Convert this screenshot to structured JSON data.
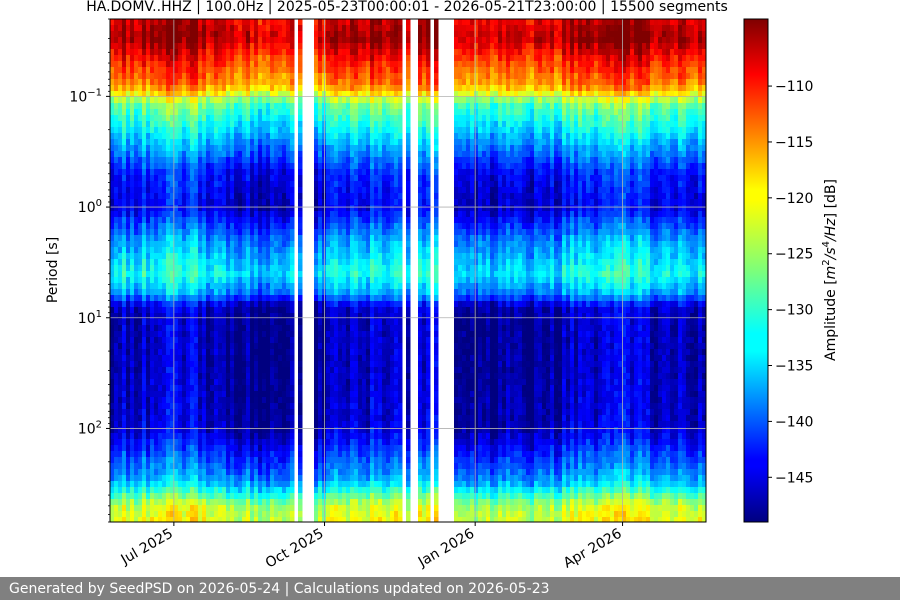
{
  "chart_data": {
    "type": "heatmap",
    "title": "HA.DOMV..HHZ | 100.0Hz | 2025-05-23T00:00:01 - 2026-05-21T23:00:00 | 15500 segments",
    "xlabel": "",
    "ylabel": "Period [s]",
    "colorbar_label": "Amplitude [m²/s⁴/Hz] [dB]",
    "colorbar_label_parts": {
      "prefix": "Amplitude [",
      "m": "m",
      "exp1": "2",
      "mid": "/s",
      "exp2": "4",
      "suffix_hz": "/Hz",
      "end": "] [dB]"
    },
    "x_range": [
      "2025-05-23",
      "2026-05-21"
    ],
    "x_ticks": [
      {
        "date": "2025-07-01",
        "label": "Jul 2025"
      },
      {
        "date": "2025-10-01",
        "label": "Oct 2025"
      },
      {
        "date": "2026-01-01",
        "label": "Jan 2026"
      },
      {
        "date": "2026-04-01",
        "label": "Apr 2026"
      }
    ],
    "y_scale": "log",
    "y_inverted": true,
    "y_range_period_s": [
      0.02,
      700
    ],
    "y_ticks": [
      {
        "value": 0.1,
        "base": "10",
        "exp": "−1"
      },
      {
        "value": 1,
        "base": "10",
        "exp": "0"
      },
      {
        "value": 10,
        "base": "10",
        "exp": "1"
      },
      {
        "value": 100,
        "base": "10",
        "exp": "2"
      }
    ],
    "colorbar_range_db": [
      -149,
      -104
    ],
    "colorbar_ticks": [
      -110,
      -115,
      -120,
      -125,
      -130,
      -135,
      -140,
      -145
    ],
    "colormap": "jet",
    "grid": true,
    "data_gaps": [
      [
        "2025-09-12",
        "2025-09-15"
      ],
      [
        "2025-09-17",
        "2025-09-24"
      ],
      [
        "2025-11-18",
        "2025-11-20"
      ],
      [
        "2025-11-23",
        "2025-11-27"
      ],
      [
        "2025-12-01",
        "2025-12-03"
      ],
      [
        "2025-12-05",
        "2025-12-08"
      ],
      [
        "2025-12-10",
        "2025-12-13"
      ],
      [
        "2025-12-15",
        "2025-12-18"
      ]
    ],
    "period_bands_db": [
      {
        "period": 0.02,
        "db": -108
      },
      {
        "period": 0.03,
        "db": -106
      },
      {
        "period": 0.05,
        "db": -112
      },
      {
        "period": 0.08,
        "db": -116
      },
      {
        "period": 0.12,
        "db": -128
      },
      {
        "period": 0.2,
        "db": -133
      },
      {
        "period": 0.5,
        "db": -143
      },
      {
        "period": 1,
        "db": -145
      },
      {
        "period": 2,
        "db": -137
      },
      {
        "period": 4,
        "db": -132
      },
      {
        "period": 6,
        "db": -137
      },
      {
        "period": 8,
        "db": -146
      },
      {
        "period": 10,
        "db": -147
      },
      {
        "period": 30,
        "db": -147
      },
      {
        "period": 100,
        "db": -146
      },
      {
        "period": 200,
        "db": -140
      },
      {
        "period": 300,
        "db": -136
      },
      {
        "period": 500,
        "db": -124
      },
      {
        "period": 700,
        "db": -122
      }
    ]
  },
  "footer": {
    "text": "Generated by SeedPSD on 2026-05-24 | Calculations updated on 2026-05-23"
  }
}
